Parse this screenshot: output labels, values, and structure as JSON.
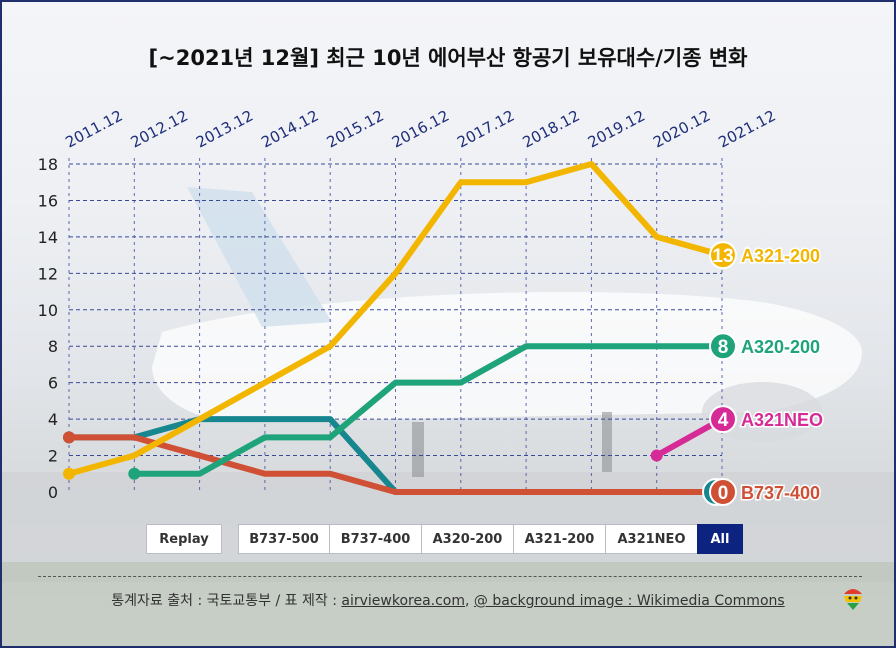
{
  "title": "[~2021년 12월] 최근 10년 에어부산 항공기 보유대수/기종 변화",
  "chart_data": {
    "type": "line",
    "categories": [
      "2011.12",
      "2012.12",
      "2013.12",
      "2014.12",
      "2015.12",
      "2016.12",
      "2017.12",
      "2018.12",
      "2019.12",
      "2020.12",
      "2021.12"
    ],
    "ylim": [
      0,
      18
    ],
    "yticks": [
      0,
      2,
      4,
      6,
      8,
      10,
      12,
      14,
      16,
      18
    ],
    "xlabel": "",
    "ylabel": "",
    "series": [
      {
        "name": "B737-500",
        "color": "#16868f",
        "values": [
          3,
          3,
          4,
          4,
          4,
          0,
          0,
          0,
          0,
          0,
          0
        ],
        "end_label": "0",
        "legend_visible": false
      },
      {
        "name": "B737-400",
        "color": "#cf5035",
        "values": [
          3,
          3,
          2,
          1,
          1,
          0,
          0,
          0,
          0,
          0,
          0
        ],
        "end_label": "0",
        "legend_visible": true
      },
      {
        "name": "A320-200",
        "color": "#1ea37a",
        "values": [
          null,
          1,
          1,
          3,
          3,
          6,
          6,
          8,
          8,
          8,
          8
        ],
        "end_label": "8",
        "legend_visible": true
      },
      {
        "name": "A321-200",
        "color": "#f3b600",
        "values": [
          1,
          2,
          4,
          6,
          8,
          12,
          17,
          17,
          18,
          14,
          13
        ],
        "end_label": "13",
        "legend_visible": true
      },
      {
        "name": "A321NEO",
        "color": "#d62b97",
        "values": [
          null,
          null,
          null,
          null,
          null,
          null,
          null,
          null,
          null,
          2,
          4
        ],
        "end_label": "4",
        "legend_visible": true
      }
    ]
  },
  "controls": {
    "replay": "Replay",
    "filters": [
      "B737-500",
      "B737-400",
      "A320-200",
      "A321-200",
      "A321NEO",
      "All"
    ],
    "active": "All"
  },
  "footer": {
    "prefix": "통계자료 출처 : 국토교통부 / 표 제작 : ",
    "site": "airviewkorea.com",
    "sep": ", ",
    "bg_credit": "@ background image : Wikimedia Commons"
  },
  "colors": {
    "accent": "#0c2480",
    "grid": "#3a4a9a"
  }
}
